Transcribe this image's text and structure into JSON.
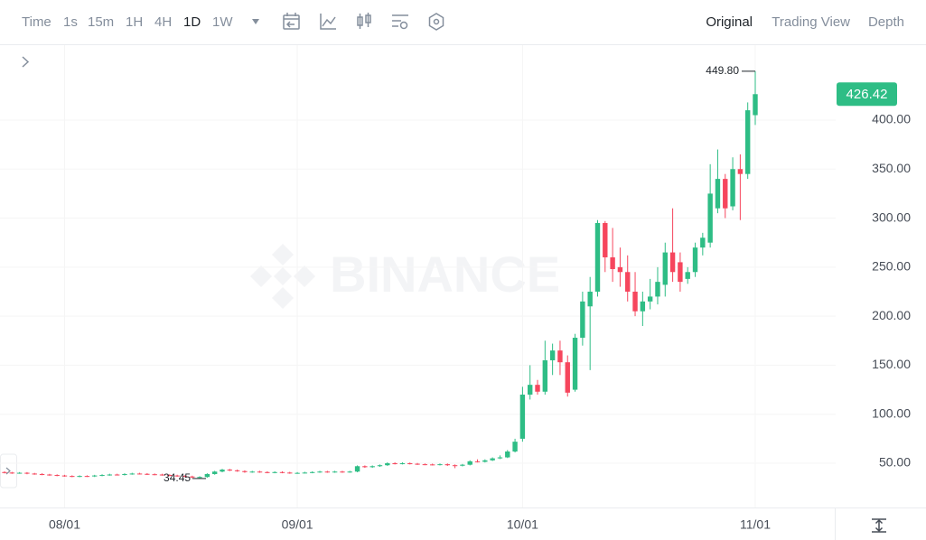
{
  "toolbar": {
    "intervals": [
      "Time",
      "1s",
      "15m",
      "1H",
      "4H",
      "1D",
      "1W"
    ],
    "active_interval": 5,
    "views": [
      "Original",
      "Trading View",
      "Depth"
    ],
    "active_view": 0
  },
  "chart_data": {
    "type": "candlestick",
    "watermark": "BINANCE",
    "up_color": "#2ebd85",
    "down_color": "#f6465d",
    "grid": true,
    "categories": [
      null,
      null,
      null,
      null,
      null,
      null,
      null,
      null,
      "08/01",
      null,
      null,
      null,
      null,
      null,
      null,
      null,
      null,
      null,
      null,
      null,
      null,
      null,
      null,
      null,
      null,
      null,
      null,
      null,
      null,
      null,
      null,
      null,
      null,
      null,
      null,
      null,
      null,
      null,
      null,
      "09/01",
      null,
      null,
      null,
      null,
      null,
      null,
      null,
      null,
      null,
      null,
      null,
      null,
      null,
      null,
      null,
      null,
      null,
      null,
      null,
      null,
      null,
      null,
      null,
      null,
      null,
      null,
      null,
      null,
      null,
      "10/01",
      null,
      null,
      null,
      null,
      null,
      null,
      null,
      null,
      null,
      null,
      null,
      null,
      null,
      null,
      null,
      null,
      null,
      null,
      null,
      null,
      null,
      null,
      null,
      null,
      null,
      null,
      null,
      null,
      null,
      null,
      "11/01"
    ],
    "open": [
      41,
      40.5,
      40,
      40.3,
      39.5,
      39,
      38.5,
      38,
      37.5,
      37,
      36.5,
      37,
      36.8,
      37.5,
      38,
      38.5,
      38.2,
      39,
      39.5,
      39.2,
      38.8,
      38.5,
      38,
      37.5,
      37,
      36.5,
      35.5,
      36,
      39,
      41.5,
      43.5,
      42.8,
      42,
      41,
      41.5,
      41,
      40.5,
      41,
      40.5,
      40,
      40.2,
      40.5,
      41,
      41.5,
      41,
      41.5,
      41,
      41.5,
      47,
      46,
      47,
      48,
      50,
      49.5,
      50,
      49.5,
      49,
      48.8,
      48.5,
      49,
      48,
      47.5,
      48.5,
      52,
      51.5,
      53,
      55,
      56,
      62,
      75,
      120,
      130,
      123,
      155,
      165,
      153,
      125,
      178,
      210,
      225,
      295,
      260,
      250,
      245,
      225,
      205,
      215,
      220,
      232,
      265,
      255,
      238,
      245,
      270,
      275,
      310,
      340,
      312,
      350,
      345,
      405
    ],
    "high": [
      41.8,
      41.2,
      41,
      41,
      40.2,
      39.8,
      39.2,
      38.7,
      38.2,
      37.7,
      37.7,
      37.7,
      38.2,
      38.8,
      39.3,
      39.3,
      39.8,
      40.3,
      40.3,
      40,
      39.6,
      39.3,
      38.8,
      38.3,
      37.8,
      37.3,
      36.8,
      39.8,
      42.3,
      44.3,
      44.3,
      43.6,
      42.8,
      42.3,
      42.3,
      41.8,
      41.8,
      41.8,
      41.3,
      41,
      41.3,
      41.8,
      42.3,
      42.3,
      42.3,
      42.3,
      42.3,
      47.8,
      47.8,
      47.8,
      48.8,
      51,
      51,
      51,
      50.8,
      50.3,
      49.8,
      49.6,
      49.8,
      49.8,
      48.8,
      49.3,
      53,
      54,
      54,
      56,
      58,
      63.5,
      75,
      128,
      150,
      135,
      175,
      172,
      175,
      160,
      182,
      225,
      240,
      298,
      297,
      290,
      270,
      262,
      245,
      225,
      238,
      250,
      275,
      310,
      265,
      250,
      275,
      285,
      355,
      370,
      345,
      362,
      365,
      418,
      449.8
    ],
    "low": [
      39.7,
      39.2,
      39.3,
      38.8,
      38.3,
      37.8,
      37.3,
      36.8,
      36.3,
      35.8,
      35.8,
      36,
      36,
      36.8,
      37.3,
      37.5,
      37.5,
      38.3,
      38.5,
      38,
      37.8,
      37.3,
      36.8,
      36.3,
      35.8,
      34.8,
      34.45,
      35.3,
      38.3,
      40.8,
      42,
      41.3,
      40.3,
      40.3,
      40.3,
      39.8,
      39.8,
      39.8,
      39.3,
      39.3,
      39.5,
      39.8,
      40.3,
      40.3,
      40.3,
      40.3,
      40.3,
      40.8,
      45.3,
      45.3,
      46.3,
      47.3,
      48.8,
      48.8,
      48.8,
      48.3,
      48,
      47.8,
      47.8,
      47.3,
      45,
      46.8,
      47.8,
      50.8,
      50.8,
      52.3,
      54.3,
      55.3,
      61,
      72,
      115,
      120,
      120,
      140,
      140,
      118,
      123,
      170,
      145,
      220,
      245,
      235,
      230,
      215,
      200,
      190,
      207,
      212,
      220,
      235,
      225,
      233,
      240,
      262,
      270,
      305,
      300,
      308,
      298,
      340,
      395
    ],
    "close": [
      40.5,
      40,
      40.3,
      39.5,
      39,
      38.5,
      38,
      37.5,
      37,
      36.5,
      37,
      36.8,
      37.5,
      38,
      38.5,
      38.2,
      39,
      39.5,
      39.2,
      38.8,
      38.5,
      38,
      37.5,
      37,
      36.5,
      35.5,
      36,
      39,
      41.5,
      43.5,
      42.8,
      42,
      41,
      41.5,
      41,
      40.5,
      41,
      40.5,
      40,
      40.2,
      40.5,
      41,
      41.5,
      41,
      41.5,
      41,
      41.5,
      47,
      46,
      47,
      48,
      50,
      49.5,
      50,
      49.5,
      49,
      48.8,
      48.5,
      49,
      48,
      47.5,
      48.5,
      52,
      51.5,
      53,
      55,
      56,
      62,
      72,
      120,
      130,
      123,
      155,
      165,
      153,
      122,
      178,
      215,
      225,
      295,
      260,
      248,
      245,
      225,
      205,
      215,
      220,
      235,
      265,
      245,
      235,
      245,
      270,
      280,
      325,
      340,
      310,
      350,
      345,
      410,
      426.42
    ],
    "max_label": "449.80",
    "min_label": "34.45",
    "last_label": "426.42",
    "ylim": [
      4.9,
      476.4
    ],
    "yticks": [
      {
        "value": 50,
        "label": "50.00"
      },
      {
        "value": 100,
        "label": "100.00"
      },
      {
        "value": 150,
        "label": "150.00"
      },
      {
        "value": 200,
        "label": "200.00"
      },
      {
        "value": 250,
        "label": "250.00"
      },
      {
        "value": 300,
        "label": "300.00"
      },
      {
        "value": 350,
        "label": "350.00"
      },
      {
        "value": 400,
        "label": "400.00"
      }
    ]
  }
}
